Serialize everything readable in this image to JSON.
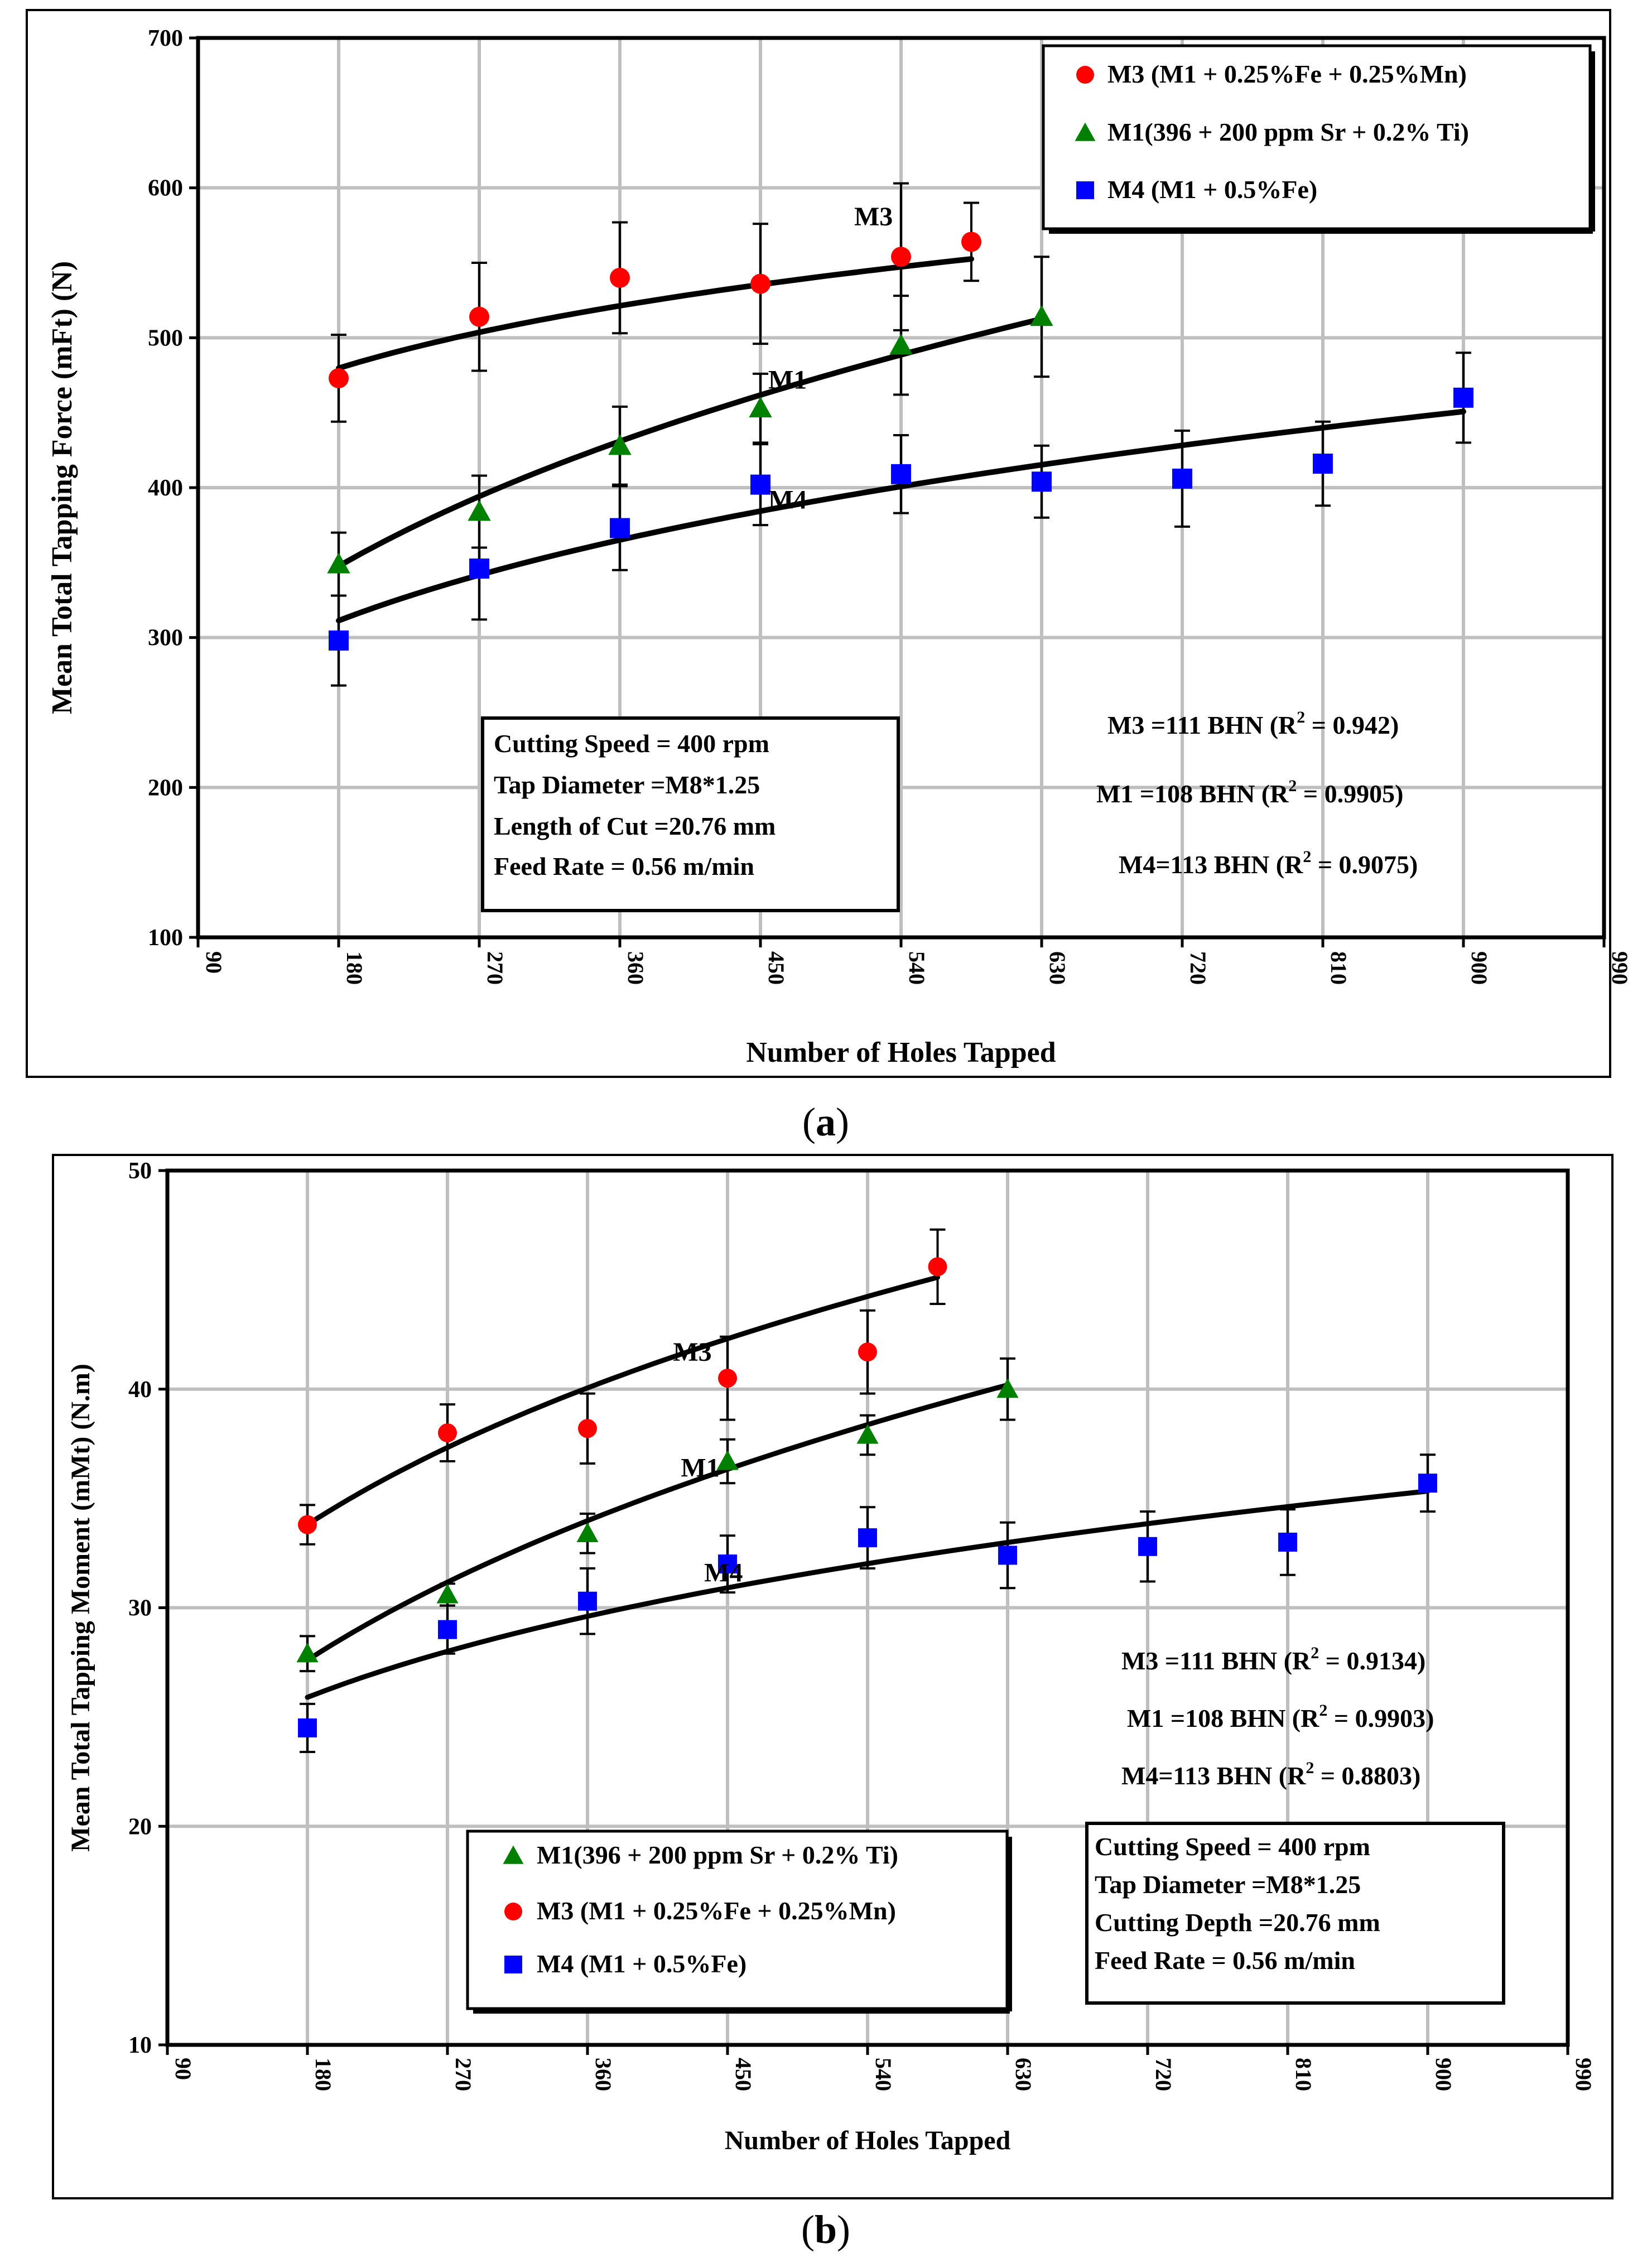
{
  "colors": {
    "M3": "#ff0000",
    "M1": "#008000",
    "M4": "#0000ff",
    "grid": "#bfbfbf",
    "frame": "#000000"
  },
  "chart_data": [
    {
      "type": "scatter",
      "caption_prefix": "(",
      "caption_letter": "a",
      "caption_suffix": ")",
      "ylabel": "Mean Total Tapping Force (mFt) (N)",
      "xlabel": "Number of Holes Tapped",
      "xlim": [
        90,
        990
      ],
      "ylim": [
        100,
        700
      ],
      "xticks": [
        "90",
        "180",
        "270",
        "360",
        "450",
        "540",
        "630",
        "720",
        "810",
        "900",
        "990"
      ],
      "yticks": [
        "100",
        "200",
        "300",
        "400",
        "500",
        "600",
        "700"
      ],
      "grid": true,
      "legend": [
        {
          "key": "M3",
          "marker": "circle",
          "label": "M3 (M1 + 0.25%Fe + 0.25%Mn)"
        },
        {
          "key": "M1",
          "marker": "triangle",
          "label": "M1(396 + 200 ppm Sr + 0.2% Ti)"
        },
        {
          "key": "M4",
          "marker": "square",
          "label": "M4 (M1 + 0.5%Fe)"
        }
      ],
      "series": [
        {
          "key": "M3",
          "name": "M3",
          "x": [
            180,
            270,
            360,
            450,
            540,
            585
          ],
          "y": [
            473,
            514,
            540,
            536,
            554,
            564
          ],
          "err": [
            29,
            36,
            37,
            40,
            49,
            26
          ],
          "fit": {
            "a": 479.7,
            "b": 0.12,
            "x0": 180,
            "x1": 585
          },
          "curve_label": "M3",
          "label_at": [
            510,
            575
          ]
        },
        {
          "key": "M1",
          "name": "M1",
          "x": [
            180,
            270,
            360,
            450,
            540,
            630
          ],
          "y": [
            349,
            384,
            428,
            453,
            495,
            514
          ],
          "err": [
            21,
            24,
            26,
            23,
            33,
            40
          ],
          "fit": {
            "a": 347.6,
            "b": 0.31,
            "x0": 180,
            "x1": 630
          },
          "curve_label": "M1",
          "label_at": [
            455,
            466
          ]
        },
        {
          "key": "M4",
          "name": "M4",
          "x": [
            180,
            270,
            360,
            450,
            540,
            630,
            720,
            810,
            900
          ],
          "y": [
            298,
            346,
            373,
            402,
            409,
            404,
            406,
            416,
            460
          ],
          "err": [
            30,
            34,
            28,
            27,
            26,
            24,
            32,
            28,
            30
          ],
          "fit": {
            "a": 311.3,
            "b": 0.23,
            "x0": 180,
            "x1": 900
          },
          "curve_label": "M4",
          "label_at": [
            455,
            386
          ]
        }
      ],
      "annotations_box": [
        "Cutting Speed = 400 rpm",
        "Tap Diameter =M8*1.25",
        "Length of Cut =20.76 mm",
        "Feed Rate = 0.56 m/min"
      ],
      "r2_labels": [
        {
          "text": "M3 =111 BHN (R",
          "sup": "2",
          "tail": " = 0.942)"
        },
        {
          "text": "M1 =108 BHN (R",
          "sup": "2",
          "tail": " = 0.9905)"
        },
        {
          "text": "M4=113 BHN (R",
          "sup": "2",
          "tail": " =  0.9075)"
        }
      ]
    },
    {
      "type": "scatter",
      "caption_prefix": "(",
      "caption_letter": "b",
      "caption_suffix": ")",
      "ylabel": "Mean Total Tapping Moment (mMt) (N.m)",
      "xlabel": "Number of Holes Tapped",
      "xlim": [
        90,
        990
      ],
      "ylim": [
        10,
        50
      ],
      "xticks": [
        "90",
        "180",
        "270",
        "360",
        "450",
        "540",
        "630",
        "720",
        "810",
        "900",
        "990"
      ],
      "yticks": [
        "10",
        "20",
        "30",
        "40",
        "50"
      ],
      "grid": true,
      "legend": [
        {
          "key": "M1",
          "marker": "triangle",
          "label": "M1(396 + 200 ppm Sr + 0.2% Ti)"
        },
        {
          "key": "M3",
          "marker": "circle",
          "label": "M3 (M1 + 0.25%Fe + 0.25%Mn)"
        },
        {
          "key": "M4",
          "marker": "square",
          "label": "M4 (M1 + 0.5%Fe)"
        }
      ],
      "series": [
        {
          "key": "M3",
          "name": "M3",
          "x": [
            180,
            270,
            360,
            450,
            540,
            585
          ],
          "y": [
            33.8,
            38.0,
            38.2,
            40.5,
            41.7,
            45.6
          ],
          "err": [
            0.9,
            1.3,
            1.6,
            1.9,
            1.9,
            1.7
          ],
          "fit": {
            "a": 33.8,
            "b": 0.245,
            "x0": 180,
            "x1": 585
          },
          "curve_label": "M3",
          "label_at": [
            415,
            41.3
          ]
        },
        {
          "key": "M1",
          "name": "M1",
          "x": [
            180,
            270,
            360,
            450,
            540,
            630
          ],
          "y": [
            27.9,
            30.6,
            33.4,
            36.7,
            37.9,
            40.0
          ],
          "err": [
            0.8,
            0.5,
            0.9,
            1.0,
            0.9,
            1.4
          ],
          "fit": {
            "a": 27.6,
            "b": 0.3,
            "x0": 180,
            "x1": 630
          },
          "curve_label": "M1",
          "label_at": [
            420,
            36.0
          ]
        },
        {
          "key": "M4",
          "name": "M4",
          "x": [
            180,
            270,
            360,
            450,
            540,
            630,
            720,
            810,
            900
          ],
          "y": [
            24.5,
            29.0,
            30.3,
            32.0,
            33.2,
            32.4,
            32.8,
            33.0,
            35.7
          ],
          "err": [
            1.1,
            1.1,
            1.5,
            1.3,
            1.4,
            1.5,
            1.6,
            1.5,
            1.3
          ],
          "fit": {
            "a": 25.9,
            "b": 0.193,
            "x0": 180,
            "x1": 900
          },
          "curve_label": "M4",
          "label_at": [
            435,
            31.2
          ]
        }
      ],
      "annotations_box": [
        "Cutting Speed = 400 rpm",
        "Tap Diameter =M8*1.25",
        "Cutting Depth =20.76 mm",
        "Feed Rate = 0.56 m/min"
      ],
      "r2_labels": [
        {
          "text": "M3 =111 BHN (R",
          "sup": "2",
          "tail": " = 0.9134)"
        },
        {
          "text": "M1 =108 BHN (R",
          "sup": "2",
          "tail": " = 0.9903)"
        },
        {
          "text": "M4=113 BHN (R",
          "sup": "2",
          "tail": " =  0.8803)"
        }
      ]
    }
  ]
}
